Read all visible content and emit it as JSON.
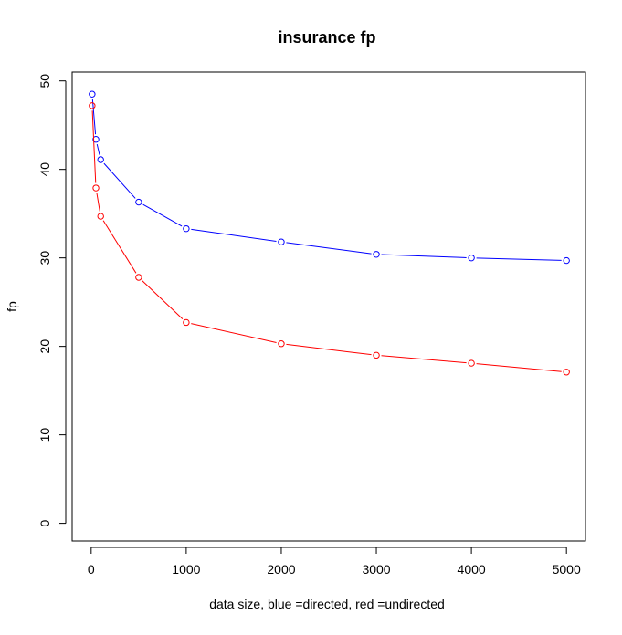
{
  "chart_data": {
    "type": "line",
    "title": "insurance fp",
    "xlabel": "data size,  blue =directed,  red =undirected",
    "ylabel": "fp",
    "xlim": [
      -200,
      5200
    ],
    "ylim": [
      -2,
      51
    ],
    "xticks": [
      {
        "value": 0,
        "label": "0"
      },
      {
        "value": 1000,
        "label": "1000"
      },
      {
        "value": 2000,
        "label": "2000"
      },
      {
        "value": 3000,
        "label": "3000"
      },
      {
        "value": 4000,
        "label": "4000"
      },
      {
        "value": 5000,
        "label": "5000"
      }
    ],
    "yticks": [
      {
        "value": 0,
        "label": "0"
      },
      {
        "value": 10,
        "label": "10"
      },
      {
        "value": 20,
        "label": "20"
      },
      {
        "value": 30,
        "label": "30"
      },
      {
        "value": 40,
        "label": "40"
      },
      {
        "value": 50,
        "label": "50"
      }
    ],
    "grid": false,
    "legend": "none",
    "x": [
      10,
      50,
      100,
      500,
      1000,
      2000,
      3000,
      4000,
      5000
    ],
    "series": [
      {
        "color": "#0000ff",
        "values": [
          48.5,
          43.4,
          41.1,
          36.3,
          33.3,
          31.8,
          30.4,
          30.0,
          29.7
        ]
      },
      {
        "color": "#ff0000",
        "values": [
          47.2,
          37.9,
          34.7,
          27.8,
          22.7,
          20.3,
          19.0,
          18.1,
          17.1
        ]
      }
    ]
  }
}
